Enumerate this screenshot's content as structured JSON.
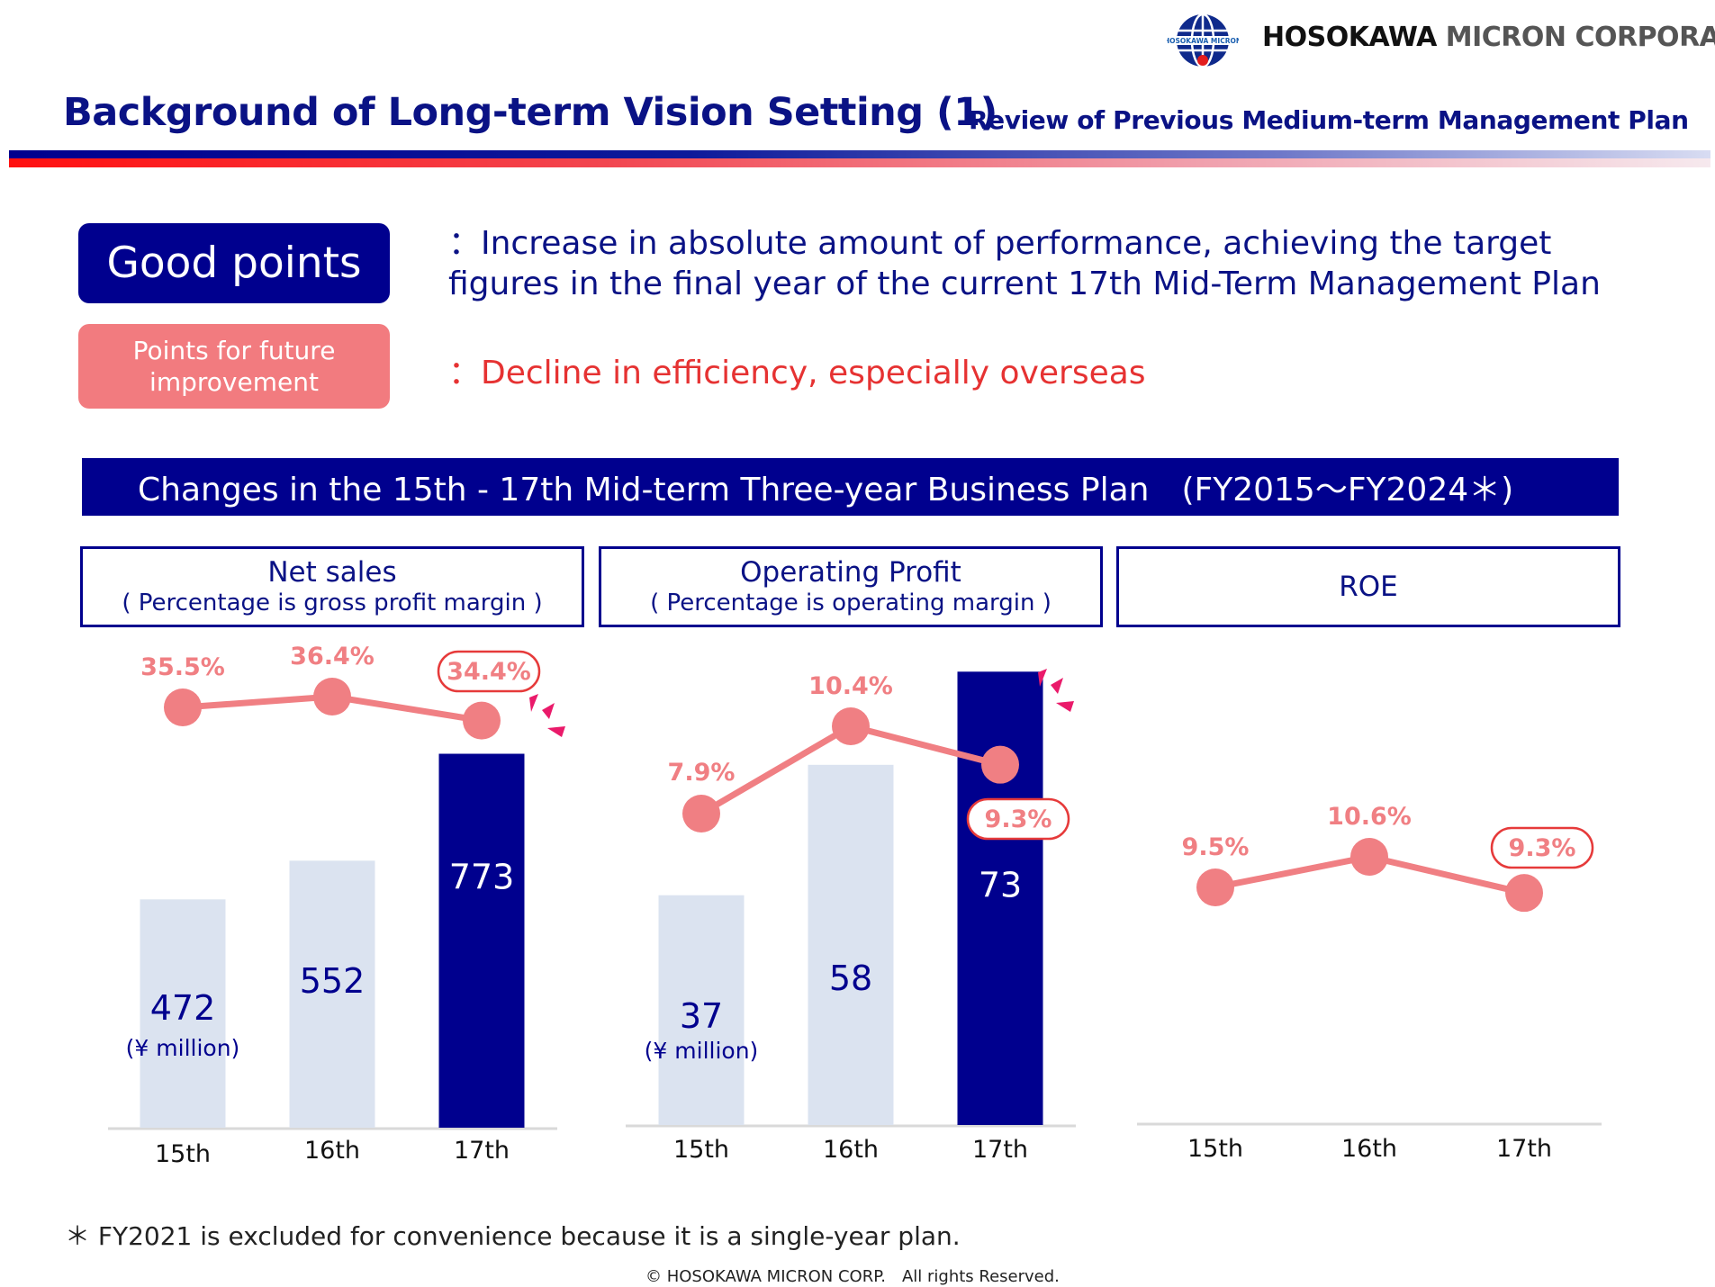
{
  "header": {
    "logo_globe_text": "HOSOKAWA MICRON",
    "company_name_part1": "HOSOKAWA",
    "company_name_part2": "MICRON CORPORATION",
    "title": "Background of Long-term Vision Setting (1)",
    "subtitle": "Review of Previous Medium-term Management Plan"
  },
  "points": {
    "good_label": "Good points",
    "good_text": "：Increase in absolute amount of performance, achieving the target figures in the final year of the current 17th Mid-Term Management Plan",
    "improve_label": "Points for future improvement",
    "improve_text": "：Decline in efficiency, especially overseas"
  },
  "banner": {
    "text": "Changes in the 15th - 17th Mid-term Three-year Business Plan　(FY2015～FY2024＊)"
  },
  "panels": {
    "sales": {
      "title": "Net sales",
      "note": "( Percentage is gross profit margin )"
    },
    "op": {
      "title": "Operating Profit",
      "note": "( Percentage is operating margin )"
    },
    "roe": {
      "title": "ROE"
    }
  },
  "colors": {
    "navy": "#00008e",
    "light_bar": "#dbe3f0",
    "line": "#f07f83",
    "accent_pink": "#ea1a6a"
  },
  "chart_data": [
    {
      "type": "bar",
      "categories": [
        "15th",
        "16th",
        "17th"
      ],
      "values": [
        472,
        552,
        773
      ],
      "value_labels": [
        "472",
        "552",
        "773"
      ],
      "unit_label": "(¥ million)",
      "highlight_index": 2,
      "line": {
        "values": [
          35.5,
          36.4,
          34.4
        ],
        "labels": [
          "35.5%",
          "36.4%",
          "34.4%"
        ],
        "highlight_index": 2
      }
    },
    {
      "type": "bar",
      "categories": [
        "15th",
        "16th",
        "17th"
      ],
      "values": [
        37,
        58,
        73
      ],
      "value_labels": [
        "37",
        "58",
        "73"
      ],
      "unit_label": "(¥ million)",
      "highlight_index": 2,
      "line": {
        "values": [
          7.9,
          10.4,
          9.3
        ],
        "labels": [
          "7.9%",
          "10.4%",
          "9.3%"
        ],
        "highlight_index": 2
      }
    },
    {
      "type": "line",
      "categories": [
        "15th",
        "16th",
        "17th"
      ],
      "line": {
        "values": [
          9.5,
          10.6,
          9.3
        ],
        "labels": [
          "9.5%",
          "10.6%",
          "9.3%"
        ],
        "highlight_index": 2
      }
    }
  ],
  "footer": {
    "footnote": "＊ FY2021 is excluded for convenience because it is a single-year plan.",
    "copyright": "© HOSOKAWA MICRON CORP.　All rights Reserved."
  }
}
